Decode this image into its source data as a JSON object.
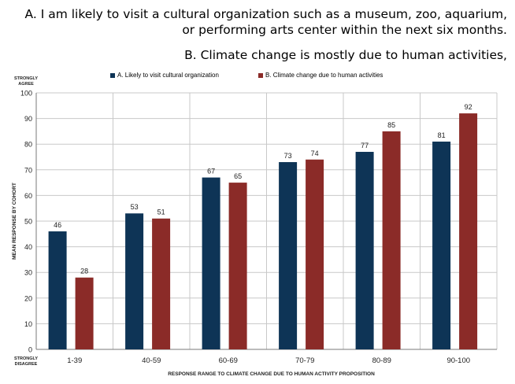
{
  "headline": {
    "a_line1": "A. I am likely to visit a cultural organization such as a museum, zoo, aquarium,",
    "a_line2": "or performing arts center within the next six months.",
    "b_line1": "B. Climate change is mostly due to human activities,"
  },
  "colors": {
    "series_a": "#0e3456",
    "series_b": "#8b2b28",
    "grid": "#c8c8c8",
    "axis": "#7a7a7a"
  },
  "chart_data": {
    "type": "bar",
    "categories": [
      "1-39",
      "40-59",
      "60-69",
      "70-79",
      "80-89",
      "90-100"
    ],
    "series": [
      {
        "name": "A. Likely to visit cultural organization",
        "values": [
          46,
          53,
          67,
          73,
          77,
          81
        ]
      },
      {
        "name": "B. Climate change due to human activities",
        "values": [
          28,
          51,
          65,
          74,
          85,
          92
        ]
      }
    ],
    "xlabel": "RESPONSE RANGE TO CLIMATE CHANGE DUE TO HUMAN ACTIVITY PROPOSITION",
    "ylabel": "MEAN RESPONSE BY COHORT",
    "ylim": [
      0,
      100
    ],
    "yticks": [
      0,
      10,
      20,
      30,
      40,
      50,
      60,
      70,
      80,
      90,
      100
    ],
    "y_top_label": [
      "STRONGLY",
      "AGREE"
    ],
    "y_bottom_label": [
      "STRONGLY",
      "DISAGREE"
    ],
    "grid": true,
    "legend_position": "top"
  }
}
